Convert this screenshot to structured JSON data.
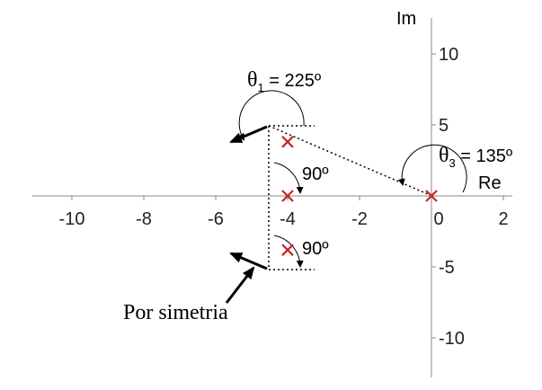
{
  "axes": {
    "x_label": "Re",
    "y_label": "Im",
    "x_ticks": [
      "-10",
      "-8",
      "-6",
      "-4",
      "-2",
      "0",
      "2"
    ],
    "y_ticks": [
      "10",
      "5",
      "-5",
      "-10"
    ],
    "xlim": [
      -10,
      2
    ],
    "ylim": [
      -10,
      10
    ]
  },
  "poles": [
    {
      "re": -4,
      "im": 4
    },
    {
      "re": -4,
      "im": 0
    },
    {
      "re": -4,
      "im": -4
    },
    {
      "re": 0,
      "im": 0
    }
  ],
  "annotations": {
    "theta1_symbol": "θ",
    "theta1_sub": "1",
    "theta1_value": " = 225º",
    "theta3_symbol": "θ",
    "theta3_sub": "3",
    "theta3_value": " = 135º",
    "angle_upper": "90º",
    "angle_lower": "90º",
    "symmetry": "Por simetria"
  },
  "colors": {
    "pole": "#cc2222",
    "axis": "#888888"
  }
}
